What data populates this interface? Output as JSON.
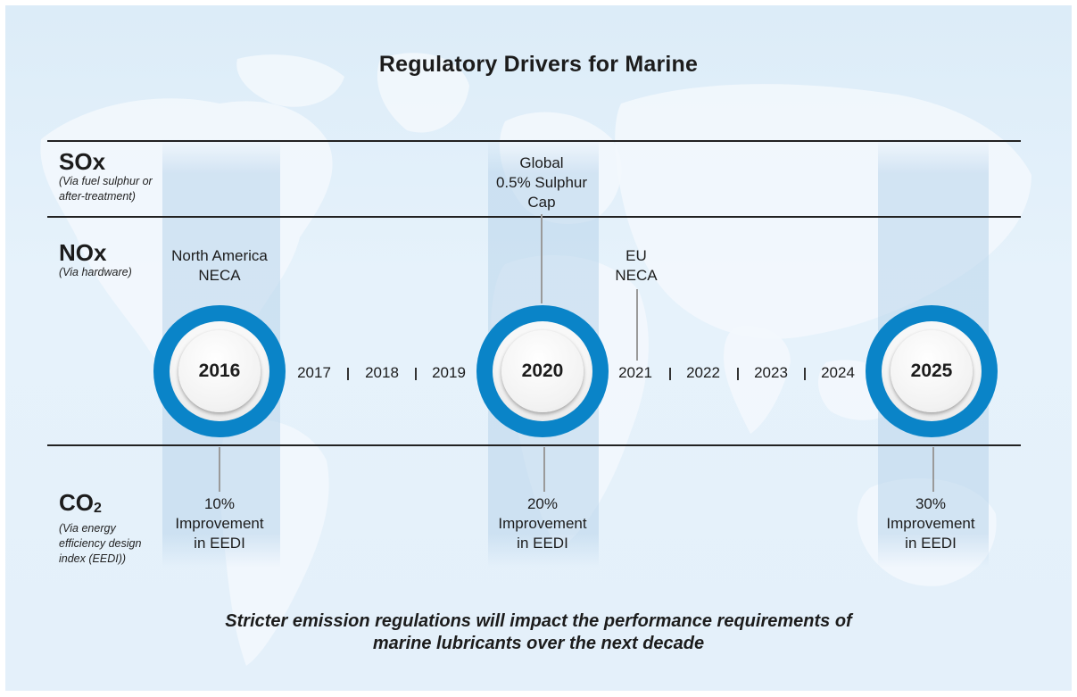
{
  "title": "Regulatory Drivers for Marine",
  "rows": {
    "sox": {
      "label": "SOx",
      "note_line1": "(Via fuel sulphur or",
      "note_line2": "after-treatment)"
    },
    "nox": {
      "label": "NOx",
      "note_line1": "(Via hardware)"
    },
    "co2": {
      "label_main": "CO",
      "label_sub": "2",
      "note_line1": "(Via energy",
      "note_line2": "efficiency design",
      "note_line3": "index (EEDI))"
    }
  },
  "milestones": [
    {
      "year": "2016"
    },
    {
      "year": "2020"
    },
    {
      "year": "2025"
    }
  ],
  "years": [
    "2017",
    "2018",
    "2019",
    "2021",
    "2022",
    "2023",
    "2024"
  ],
  "events": {
    "sulphur_cap": {
      "line1": "Global",
      "line2": "0.5% Sulphur",
      "line3": "Cap"
    },
    "north_america_neca": {
      "line1": "North America",
      "line2": "NECA"
    },
    "eu_neca": {
      "line1": "EU",
      "line2": "NECA"
    }
  },
  "co2_targets": [
    {
      "line1": "10%",
      "line2": "Improvement",
      "line3": "in EEDI"
    },
    {
      "line1": "20%",
      "line2": "Improvement",
      "line3": "in EEDI"
    },
    {
      "line1": "30%",
      "line2": "Improvement",
      "line3": "in EEDI"
    }
  ],
  "footer": {
    "line1": "Stricter emission regulations will impact the performance requirements of",
    "line2": "marine lubricants over the next decade"
  },
  "colors": {
    "ring": "#0a84c8",
    "background": "#e2effa",
    "band": "#b9d4eb"
  }
}
